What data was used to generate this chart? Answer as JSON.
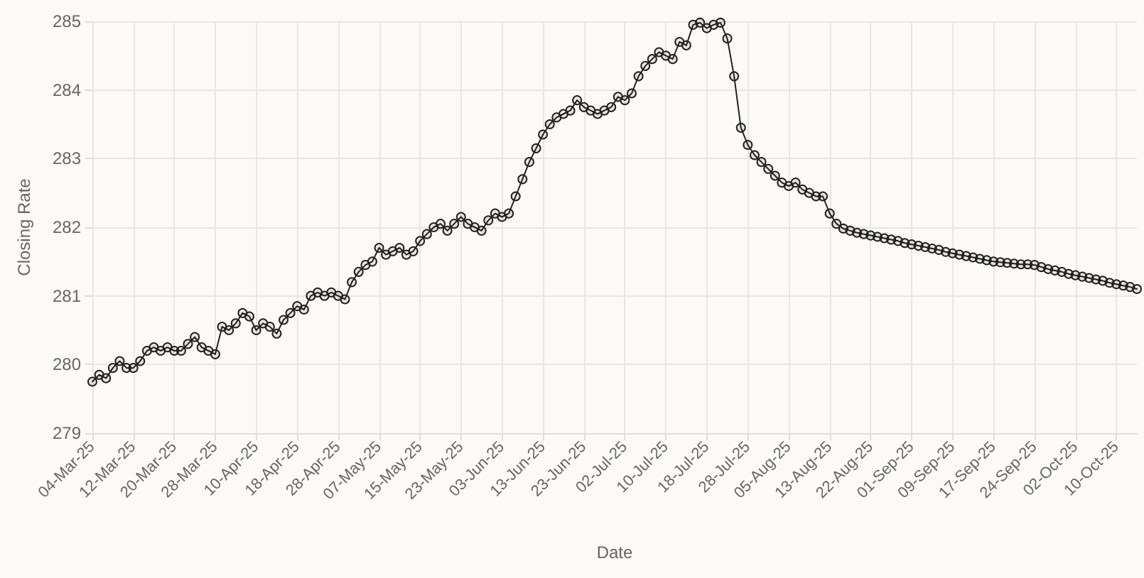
{
  "chart_data": {
    "type": "line",
    "xlabel": "Date",
    "ylabel": "Closing Rate",
    "categories": [
      "04-Mar-25",
      null,
      null,
      null,
      null,
      null,
      "12-Mar-25",
      null,
      null,
      null,
      null,
      null,
      "20-Mar-25",
      null,
      null,
      null,
      null,
      null,
      "28-Mar-25",
      null,
      null,
      null,
      null,
      null,
      "10-Apr-25",
      null,
      null,
      null,
      null,
      null,
      "18-Apr-25",
      null,
      null,
      null,
      null,
      null,
      "28-Apr-25",
      null,
      null,
      null,
      null,
      null,
      "07-May-25",
      null,
      null,
      null,
      null,
      null,
      "15-May-25",
      null,
      null,
      null,
      null,
      null,
      "23-May-25",
      null,
      null,
      null,
      null,
      null,
      "03-Jun-25",
      null,
      null,
      null,
      null,
      null,
      "13-Jun-25",
      null,
      null,
      null,
      null,
      null,
      "23-Jun-25",
      null,
      null,
      null,
      null,
      null,
      "02-Jul-25",
      null,
      null,
      null,
      null,
      null,
      "10-Jul-25",
      null,
      null,
      null,
      null,
      null,
      "18-Jul-25",
      null,
      null,
      null,
      null,
      null,
      "28-Jul-25",
      null,
      null,
      null,
      null,
      null,
      "05-Aug-25",
      null,
      null,
      null,
      null,
      null,
      "13-Aug-25",
      null,
      null,
      null,
      null,
      null,
      "22-Aug-25",
      null,
      null,
      null,
      null,
      null,
      "01-Sep-25",
      null,
      null,
      null,
      null,
      null,
      "09-Sep-25",
      null,
      null,
      null,
      null,
      null,
      "17-Sep-25",
      null,
      null,
      null,
      null,
      null,
      "24-Sep-25",
      null,
      null,
      null,
      null,
      null,
      "02-Oct-25",
      null,
      null,
      null,
      null,
      null,
      "10-Oct-25",
      null,
      null,
      null
    ],
    "series": [
      {
        "color": "#222222",
        "values": [
          279.75,
          279.85,
          279.8,
          279.95,
          280.05,
          279.95,
          279.95,
          280.05,
          280.2,
          280.25,
          280.2,
          280.25,
          280.2,
          280.2,
          280.3,
          280.4,
          280.25,
          280.2,
          280.15,
          280.55,
          280.5,
          280.6,
          280.75,
          280.7,
          280.5,
          280.6,
          280.55,
          280.45,
          280.65,
          280.75,
          280.85,
          280.8,
          281.0,
          281.05,
          281.0,
          281.05,
          281.0,
          280.95,
          281.2,
          281.35,
          281.45,
          281.5,
          281.7,
          281.6,
          281.65,
          281.7,
          281.6,
          281.65,
          281.8,
          281.9,
          282.0,
          282.05,
          281.95,
          282.05,
          282.15,
          282.05,
          282.0,
          281.95,
          282.1,
          282.2,
          282.15,
          282.2,
          282.45,
          282.7,
          282.95,
          283.15,
          283.35,
          283.5,
          283.6,
          283.65,
          283.7,
          283.85,
          283.75,
          283.7,
          283.65,
          283.7,
          283.75,
          283.9,
          283.85,
          283.95,
          284.2,
          284.35,
          284.45,
          284.55,
          284.5,
          284.45,
          284.7,
          284.65,
          284.95,
          284.98,
          284.9,
          284.95,
          284.98,
          284.75,
          284.2,
          283.45,
          283.2,
          283.05,
          282.95,
          282.85,
          282.75,
          282.65,
          282.6,
          282.65,
          282.55,
          282.5,
          282.45,
          282.45,
          282.2,
          282.05,
          281.98,
          281.95,
          281.92,
          281.9,
          281.88,
          281.86,
          281.84,
          281.82,
          281.8,
          281.77,
          281.75,
          281.73,
          281.71,
          281.69,
          281.67,
          281.64,
          281.62,
          281.6,
          281.58,
          281.56,
          281.54,
          281.52,
          281.5,
          281.49,
          281.48,
          281.47,
          281.46,
          281.46,
          281.45,
          281.42,
          281.39,
          281.37,
          281.35,
          281.32,
          281.3,
          281.28,
          281.26,
          281.24,
          281.22,
          281.19,
          281.17,
          281.15,
          281.13,
          281.1
        ]
      }
    ],
    "ylim": [
      279,
      285
    ],
    "yticks": [
      279,
      280,
      281,
      282,
      283,
      284,
      285
    ],
    "grid": true,
    "marker": "circle",
    "line_style": "solid"
  }
}
